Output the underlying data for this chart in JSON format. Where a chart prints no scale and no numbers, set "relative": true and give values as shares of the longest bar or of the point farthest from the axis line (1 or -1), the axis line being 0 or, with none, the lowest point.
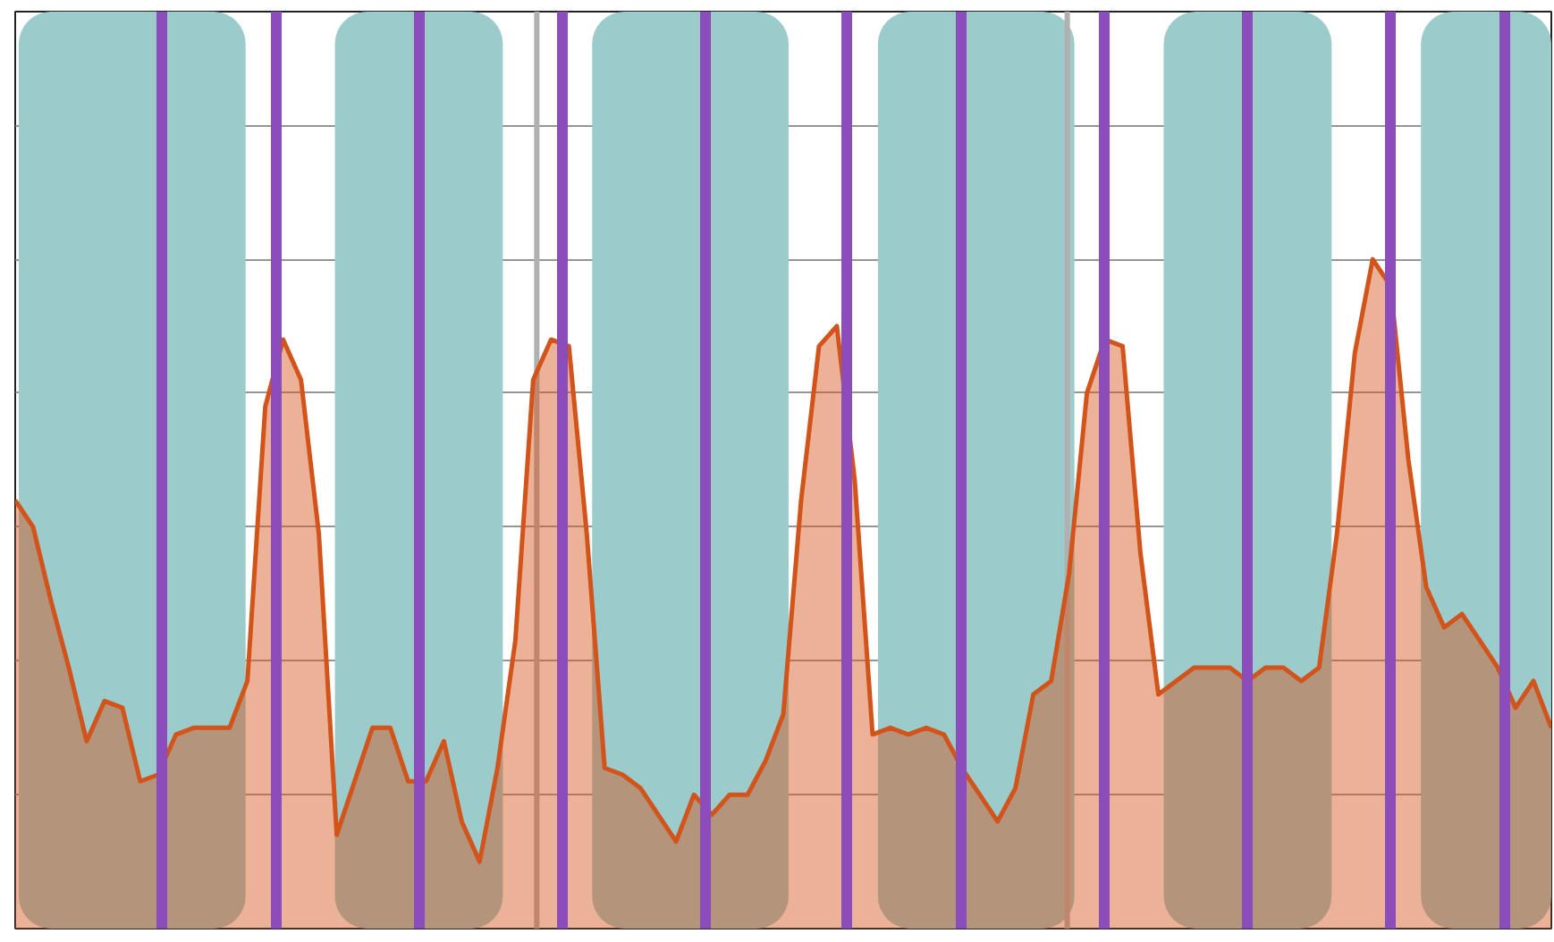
{
  "chart_data": {
    "type": "area",
    "relative": true,
    "tick_labels": false,
    "grid": true,
    "categories": [
      null,
      null,
      null,
      null,
      null,
      null,
      null,
      null,
      null,
      null,
      null,
      null,
      null,
      null,
      null,
      null,
      null,
      null,
      null,
      null,
      null,
      null,
      null,
      null,
      null,
      null,
      null,
      null,
      null,
      null,
      null,
      null,
      null,
      null,
      null,
      null,
      null,
      null,
      null,
      null,
      null,
      null,
      null,
      null,
      null,
      null,
      null,
      null,
      null,
      null,
      null,
      null,
      null,
      null,
      null,
      null,
      null,
      null,
      null,
      null,
      null,
      null,
      null,
      null,
      null,
      null,
      null,
      null,
      null,
      null,
      null,
      null,
      null,
      null,
      null,
      null,
      null,
      null,
      null,
      null,
      null,
      null,
      null,
      null,
      null,
      null,
      null
    ],
    "series": [
      {
        "color": "#d2541b",
        "values": [
          0.64,
          0.6,
          0.49,
          0.39,
          0.28,
          0.34,
          0.33,
          0.22,
          0.23,
          0.29,
          0.3,
          0.3,
          0.3,
          0.37,
          0.78,
          0.88,
          0.82,
          0.59,
          0.14,
          0.22,
          0.3,
          0.3,
          0.22,
          0.22,
          0.28,
          0.16,
          0.1,
          0.24,
          0.43,
          0.82,
          0.88,
          0.87,
          0.59,
          0.24,
          0.23,
          0.21,
          0.17,
          0.13,
          0.2,
          0.17,
          0.2,
          0.2,
          0.25,
          0.32,
          0.64,
          0.87,
          0.9,
          0.67,
          0.29,
          0.3,
          0.29,
          0.3,
          0.29,
          0.24,
          0.2,
          0.16,
          0.21,
          0.35,
          0.37,
          0.53,
          0.8,
          0.88,
          0.87,
          0.56,
          0.35,
          0.37,
          0.39,
          0.39,
          0.39,
          0.37,
          0.39,
          0.39,
          0.37,
          0.39,
          0.59,
          0.86,
          1.0,
          0.96,
          0.7,
          0.51,
          0.45,
          0.47,
          0.43,
          0.39,
          0.33,
          0.37,
          0.3
        ]
      }
    ]
  }
}
